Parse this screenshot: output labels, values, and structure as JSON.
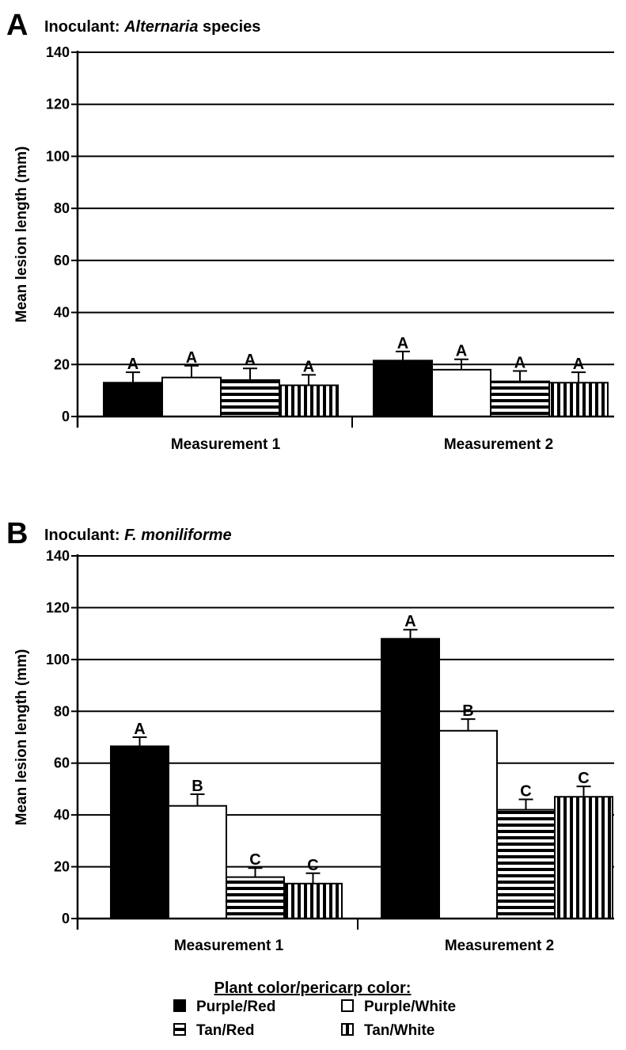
{
  "chart_data": [
    {
      "type": "bar",
      "panel": "A",
      "title_prefix": "Inoculant: ",
      "title_italic": "Alternaria",
      "title_suffix": " species",
      "xlabel": "",
      "ylabel": "Mean lesion length (mm)",
      "ylim": [
        0,
        140
      ],
      "yticks": [
        0,
        20,
        40,
        60,
        80,
        100,
        120,
        140
      ],
      "grid": true,
      "categories": [
        "Measurement 1",
        "Measurement 2"
      ],
      "series": [
        {
          "name": "Purple/Red",
          "values": [
            13,
            21.5
          ],
          "errors": [
            4,
            3.5
          ],
          "labels": [
            "A",
            "A"
          ]
        },
        {
          "name": "Purple/White",
          "values": [
            15,
            18
          ],
          "errors": [
            4.5,
            4
          ],
          "labels": [
            "A",
            "A"
          ]
        },
        {
          "name": "Tan/Red",
          "values": [
            14,
            13.5
          ],
          "errors": [
            4.5,
            4
          ],
          "labels": [
            "A",
            "A"
          ]
        },
        {
          "name": "Tan/White",
          "values": [
            12,
            13
          ],
          "errors": [
            4,
            4
          ],
          "labels": [
            "A",
            "A"
          ]
        }
      ]
    },
    {
      "type": "bar",
      "panel": "B",
      "title_prefix": "Inoculant: ",
      "title_italic": "F. moniliforme",
      "title_suffix": "",
      "xlabel": "",
      "ylabel": "Mean lesion length (mm)",
      "ylim": [
        0,
        140
      ],
      "yticks": [
        0,
        20,
        40,
        60,
        80,
        100,
        120,
        140
      ],
      "grid": true,
      "categories": [
        "Measurement 1",
        "Measurement 2"
      ],
      "series": [
        {
          "name": "Purple/Red",
          "values": [
            66.5,
            108
          ],
          "errors": [
            3.5,
            3.5
          ],
          "labels": [
            "A",
            "A"
          ]
        },
        {
          "name": "Purple/White",
          "values": [
            43.5,
            72.5
          ],
          "errors": [
            4.5,
            4.5
          ],
          "labels": [
            "B",
            "B"
          ]
        },
        {
          "name": "Tan/Red",
          "values": [
            16,
            42
          ],
          "errors": [
            3.5,
            4
          ],
          "labels": [
            "C",
            "C"
          ]
        },
        {
          "name": "Tan/White",
          "values": [
            13.5,
            47
          ],
          "errors": [
            4,
            4
          ],
          "labels": [
            "C",
            "C"
          ]
        }
      ]
    }
  ],
  "legend": {
    "title": "Plant color/pericarp color:",
    "placement": "bottom-center",
    "items": [
      {
        "label": "Purple/Red",
        "pattern": "solid-black"
      },
      {
        "label": "Purple/White",
        "pattern": "white"
      },
      {
        "label": "Tan/Red",
        "pattern": "horizontal-stripes"
      },
      {
        "label": "Tan/White",
        "pattern": "vertical-stripes"
      }
    ]
  }
}
